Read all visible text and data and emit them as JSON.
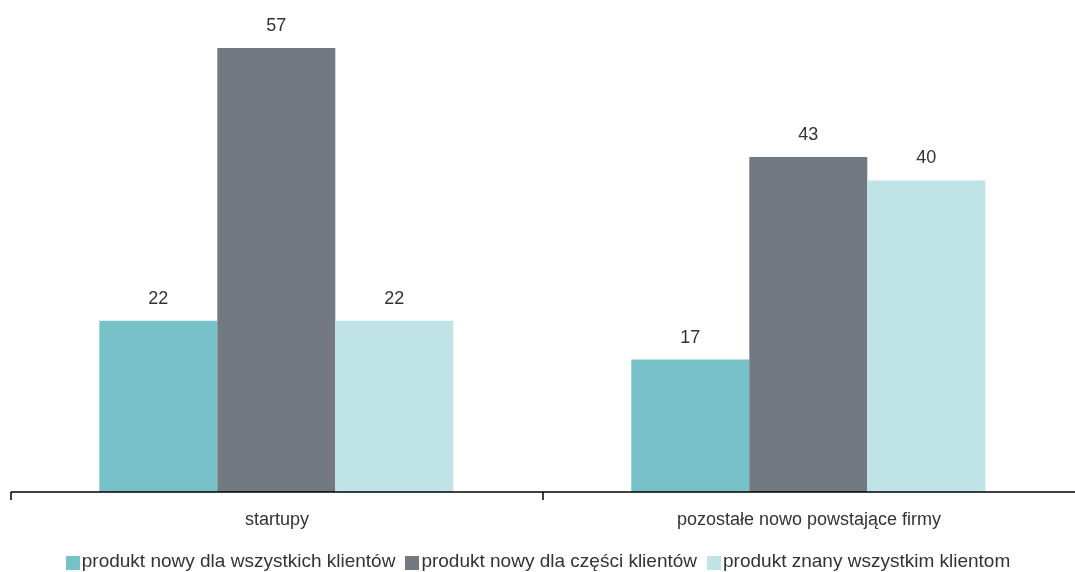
{
  "chart_data": {
    "type": "bar",
    "categories": [
      "startupy",
      "pozostałe nowo powstające firmy"
    ],
    "series": [
      {
        "name": "produkt nowy dla wszystkich klientów",
        "color": "#76c2c8",
        "values": [
          22,
          17
        ]
      },
      {
        "name": "produkt nowy dla części klientów",
        "color": "#727980",
        "values": [
          57,
          43
        ]
      },
      {
        "name": "produkt znany wszystkim klientom",
        "color": "#c0e4e6",
        "values": [
          22,
          40
        ]
      }
    ],
    "data_labels": true,
    "legend": "bottom",
    "tick_labels": "x"
  }
}
